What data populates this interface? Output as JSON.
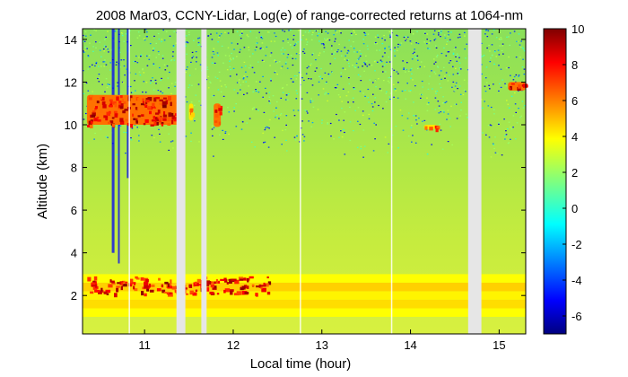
{
  "chart_data": {
    "type": "heatmap",
    "title": "2008 Mar03, CCNY-Lidar, Log(e) of range-corrected returns at 1064-nm",
    "xlabel": "Local time (hour)",
    "ylabel": "Altitude (km)",
    "xlim": [
      10.3,
      15.3
    ],
    "ylim": [
      0.2,
      14.5
    ],
    "x_ticks": [
      11,
      12,
      13,
      14,
      15
    ],
    "x_tick_labels": [
      "11",
      "12",
      "13",
      "14",
      "15"
    ],
    "y_ticks": [
      2,
      4,
      6,
      8,
      10,
      12,
      14
    ],
    "y_tick_labels": [
      "2",
      "4",
      "6",
      "8",
      "10",
      "12",
      "14"
    ],
    "colorbar": {
      "range": [
        -7,
        10
      ],
      "ticks": [
        -6,
        -4,
        -2,
        0,
        2,
        4,
        6,
        8,
        10
      ],
      "tick_labels": [
        "-6",
        "-4",
        "-2",
        "0",
        "2",
        "4",
        "6",
        "8",
        "10"
      ],
      "colormap": "jet"
    },
    "background_value": 1.5,
    "data_gaps_hours": [
      [
        11.36,
        11.46
      ],
      [
        11.64,
        11.7
      ],
      [
        14.65,
        14.8
      ]
    ],
    "features": [
      {
        "kind": "cirrus",
        "x": [
          10.35,
          11.4
        ],
        "alt": [
          10.0,
          11.4
        ],
        "value": 8
      },
      {
        "kind": "cirrus",
        "x": [
          11.5,
          11.55
        ],
        "alt": [
          10.2,
          11.0
        ],
        "value": 6
      },
      {
        "kind": "cirrus",
        "x": [
          11.78,
          11.86
        ],
        "alt": [
          9.9,
          11.0
        ],
        "value": 8
      },
      {
        "kind": "cirrus",
        "x": [
          15.1,
          15.3
        ],
        "alt": [
          11.6,
          12.0
        ],
        "value": 8
      },
      {
        "kind": "cirrus",
        "x": [
          14.15,
          14.3
        ],
        "alt": [
          9.8,
          10.0
        ],
        "value": 6
      },
      {
        "kind": "boundary_layer",
        "x": [
          10.3,
          15.3
        ],
        "alt": [
          1.0,
          3.0
        ],
        "value": 4
      },
      {
        "kind": "low_cloud",
        "x": [
          10.35,
          12.4
        ],
        "alt": [
          2.1,
          2.9
        ],
        "value": 8
      }
    ]
  },
  "colors": {
    "background": "#ffffff",
    "gap": "#e6e6e6"
  }
}
